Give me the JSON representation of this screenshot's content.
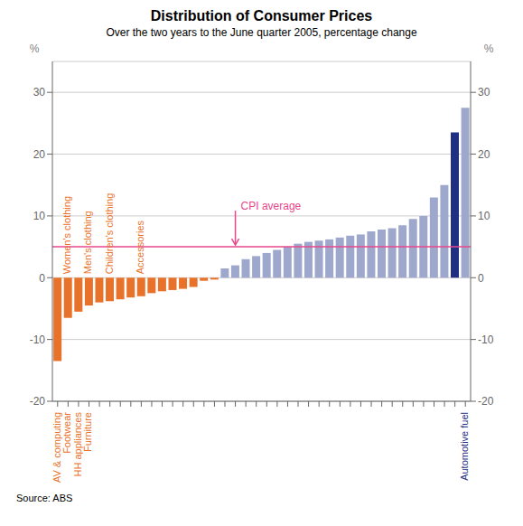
{
  "chart_data": {
    "type": "bar",
    "title": "Distribution of Consumer Prices",
    "subtitle": "Over the two years to the June quarter 2005, percentage change",
    "source": "Source: ABS",
    "ylabel": "%",
    "y2label": "%",
    "categories": [
      "AV & computing",
      "Footwear",
      "HH appliances",
      "Furniture",
      null,
      null,
      null,
      null,
      null,
      null,
      null,
      null,
      null,
      null,
      null,
      null,
      null,
      null,
      null,
      null,
      null,
      null,
      null,
      null,
      null,
      null,
      null,
      null,
      null,
      null,
      null,
      null,
      null,
      null,
      null,
      null,
      null,
      null,
      null,
      "Automotive fuel"
    ],
    "category_colors": [
      "#E8722A",
      "#E8722A",
      "#E8722A",
      "#E8722A",
      null,
      null,
      null,
      null,
      null,
      null,
      null,
      null,
      null,
      null,
      null,
      null,
      null,
      null,
      null,
      null,
      null,
      null,
      null,
      null,
      null,
      null,
      null,
      null,
      null,
      null,
      null,
      null,
      null,
      null,
      null,
      null,
      null,
      null,
      null,
      "#1F3082"
    ],
    "values": [
      -13.5,
      -6.5,
      -5.5,
      -4.5,
      -4.0,
      -3.8,
      -3.5,
      -3.2,
      -3.0,
      -2.5,
      -2.2,
      -2.0,
      -1.8,
      -1.5,
      -0.5,
      -0.3,
      1.5,
      2.0,
      3.0,
      3.5,
      4.0,
      4.5,
      5.0,
      5.5,
      5.8,
      6.0,
      6.2,
      6.5,
      6.8,
      7.0,
      7.5,
      7.8,
      8.0,
      8.5,
      9.5,
      10.0,
      13.0,
      15.0,
      23.5,
      27.5
    ],
    "colors": [
      "#E8722A",
      "#E8722A",
      "#E8722A",
      "#E8722A",
      "#E8722A",
      "#E8722A",
      "#E8722A",
      "#E8722A",
      "#E8722A",
      "#E8722A",
      "#E8722A",
      "#E8722A",
      "#E8722A",
      "#E8722A",
      "#E8722A",
      "#E8722A",
      "#9EA8CC",
      "#9EA8CC",
      "#9EA8CC",
      "#9EA8CC",
      "#9EA8CC",
      "#9EA8CC",
      "#9EA8CC",
      "#9EA8CC",
      "#9EA8CC",
      "#9EA8CC",
      "#9EA8CC",
      "#9EA8CC",
      "#9EA8CC",
      "#9EA8CC",
      "#9EA8CC",
      "#9EA8CC",
      "#9EA8CC",
      "#9EA8CC",
      "#9EA8CC",
      "#9EA8CC",
      "#9EA8CC",
      "#9EA8CC",
      "#1F3082",
      "#9EA8CC"
    ],
    "ylim": [
      -20,
      35
    ],
    "yticks": [
      -20,
      -10,
      0,
      10,
      20,
      30
    ],
    "y2lim": [
      -20,
      35
    ],
    "y2ticks": [
      -20,
      -10,
      0,
      10,
      20,
      30
    ],
    "grid": true,
    "reference_line": {
      "text": "CPI average",
      "y": 5.0,
      "color": "#E8478C"
    },
    "annotations": [
      {
        "text": "Women's clothing",
        "index": 1,
        "color": "#E8722A"
      },
      {
        "text": "Men's clothing",
        "index": 3,
        "color": "#E8722A"
      },
      {
        "text": "Children's clothing",
        "index": 5,
        "color": "#E8722A"
      },
      {
        "text": "Accessories",
        "index": 8,
        "color": "#E8722A"
      }
    ]
  }
}
